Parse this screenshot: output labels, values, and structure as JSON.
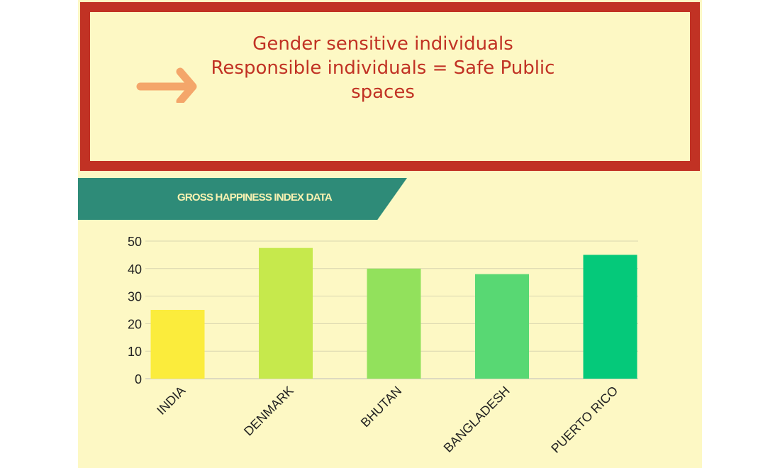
{
  "callout": {
    "lines": [
      "Gender sensitive individuals",
      "Responsible individuals = Safe Public",
      "spaces"
    ]
  },
  "banner": {
    "title": "GROSS HAPPINESS INDEX DATA"
  },
  "colors": {
    "frame": "#c13224",
    "background": "#fdf8c4",
    "banner": "#2e8b78",
    "arrow": "#f4a66a"
  },
  "chart_data": {
    "type": "bar",
    "categories": [
      "INDIA",
      "DENMARK",
      "BHUTAN",
      "BANGLADESH",
      "PUERTO RICO"
    ],
    "values": [
      25,
      47.5,
      40,
      38,
      45
    ],
    "bar_colors": [
      "#fbec3c",
      "#c6e94c",
      "#92e15c",
      "#58d873",
      "#05c97a"
    ],
    "title": "GROSS HAPPINESS INDEX DATA",
    "xlabel": "",
    "ylabel": "",
    "ylim": [
      0,
      50
    ],
    "yticks": [
      0,
      10,
      20,
      30,
      40,
      50
    ],
    "grid": true,
    "legend": "none"
  }
}
